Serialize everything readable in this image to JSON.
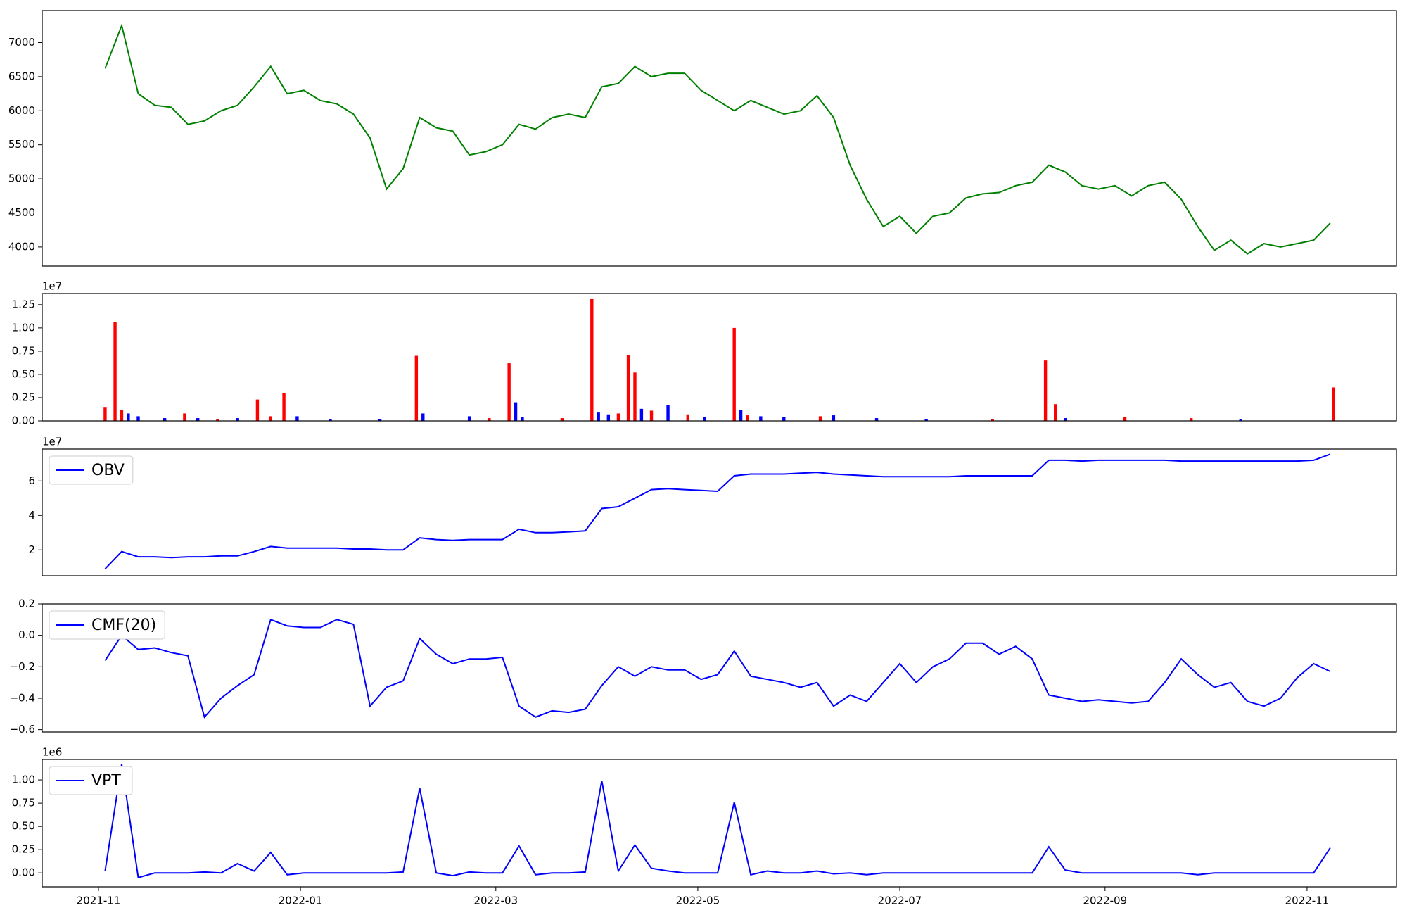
{
  "chart_data": [
    {
      "type": "line",
      "xlim": [
        -17,
        392
      ],
      "ylim": [
        3720,
        7470
      ],
      "yticks": [
        4000,
        4500,
        5000,
        5500,
        6000,
        6500,
        7000
      ],
      "x": [
        2,
        7,
        12,
        17,
        22,
        27,
        32,
        37,
        42,
        47,
        52,
        57,
        62,
        67,
        72,
        77,
        82,
        87,
        92,
        97,
        102,
        107,
        112,
        117,
        122,
        127,
        132,
        137,
        142,
        147,
        152,
        157,
        162,
        167,
        172,
        177,
        182,
        187,
        192,
        197,
        202,
        207,
        212,
        217,
        222,
        227,
        232,
        237,
        242,
        247,
        252,
        257,
        262,
        267,
        272,
        277,
        282,
        287,
        292,
        297,
        302,
        307,
        312,
        317,
        322,
        327,
        332,
        337,
        342,
        347,
        352,
        357,
        362,
        367,
        372
      ],
      "series": [
        {
          "color": "#008000",
          "values": [
            6620,
            7250,
            6250,
            6080,
            6050,
            5800,
            5850,
            6000,
            6080,
            6350,
            6650,
            6250,
            6300,
            6150,
            6100,
            5950,
            5600,
            4850,
            5150,
            5900,
            5750,
            5700,
            5350,
            5400,
            5500,
            5800,
            5730,
            5900,
            5950,
            5900,
            6350,
            6400,
            6650,
            6500,
            6550,
            6550,
            6300,
            6150,
            6000,
            6150,
            6050,
            5950,
            6000,
            6220,
            5900,
            5200,
            4700,
            4300,
            4450,
            4200,
            4450,
            4500,
            4720,
            4780,
            4800,
            4900,
            4950,
            5200,
            5100,
            4900,
            4850,
            4900,
            4750,
            4900,
            4950,
            4700,
            4300,
            3950,
            4100,
            3900,
            4050,
            4000,
            4050,
            4100,
            4350
          ]
        }
      ]
    },
    {
      "type": "bar",
      "xlim": [
        -17,
        392
      ],
      "ylim": [
        0,
        1.37
      ],
      "offset_label": "1e7",
      "yticks": [
        {
          "value": 0,
          "label": "0.00"
        },
        0.25,
        {
          "value": 0.5,
          "label": "0.50"
        },
        0.75,
        {
          "value": 1,
          "label": "1.00"
        },
        1.25
      ],
      "x": [
        2,
        5,
        7,
        9,
        12,
        20,
        26,
        30,
        36,
        42,
        48,
        52,
        56,
        60,
        70,
        85,
        96,
        98,
        112,
        118,
        124,
        126,
        128,
        140,
        149,
        151,
        154,
        157,
        160,
        162,
        164,
        167,
        172,
        178,
        183,
        192,
        194,
        196,
        200,
        207,
        218,
        222,
        235,
        250,
        270,
        286,
        289,
        292,
        310,
        330,
        345,
        373
      ],
      "values": [
        0.15,
        1.06,
        0.12,
        0.08,
        0.05,
        0.03,
        0.08,
        0.03,
        0.02,
        0.03,
        0.23,
        0.05,
        0.3,
        0.05,
        0.02,
        0.02,
        0.7,
        0.08,
        0.05,
        0.03,
        0.62,
        0.2,
        0.04,
        0.03,
        1.31,
        0.09,
        0.07,
        0.08,
        0.71,
        0.52,
        0.13,
        0.11,
        0.17,
        0.07,
        0.04,
        1.0,
        0.12,
        0.06,
        0.05,
        0.04,
        0.05,
        0.06,
        0.03,
        0.02,
        0.02,
        0.65,
        0.18,
        0.03,
        0.04,
        0.03,
        0.02,
        0.36
      ],
      "colors": [
        "#ff0000",
        "#ff0000",
        "#ff0000",
        "#0000ff",
        "#0000ff",
        "#0000ff",
        "#ff0000",
        "#0000ff",
        "#ff0000",
        "#0000ff",
        "#ff0000",
        "#ff0000",
        "#ff0000",
        "#0000ff",
        "#0000ff",
        "#0000ff",
        "#ff0000",
        "#0000ff",
        "#0000ff",
        "#ff0000",
        "#ff0000",
        "#0000ff",
        "#0000ff",
        "#ff0000",
        "#ff0000",
        "#0000ff",
        "#0000ff",
        "#ff0000",
        "#ff0000",
        "#ff0000",
        "#0000ff",
        "#ff0000",
        "#0000ff",
        "#ff0000",
        "#0000ff",
        "#ff0000",
        "#0000ff",
        "#ff0000",
        "#0000ff",
        "#0000ff",
        "#ff0000",
        "#0000ff",
        "#0000ff",
        "#0000ff",
        "#ff0000",
        "#ff0000",
        "#ff0000",
        "#0000ff",
        "#ff0000",
        "#ff0000",
        "#0000ff",
        "#ff0000"
      ]
    },
    {
      "type": "line",
      "xlim": [
        -17,
        392
      ],
      "ylim": [
        0.5,
        7.85
      ],
      "offset_label": "1e7",
      "yticks": [
        2,
        4,
        6
      ],
      "legend": "upper left",
      "x": [
        2,
        7,
        12,
        17,
        22,
        27,
        32,
        37,
        42,
        47,
        52,
        57,
        62,
        67,
        72,
        77,
        82,
        87,
        92,
        97,
        102,
        107,
        112,
        117,
        122,
        127,
        132,
        137,
        142,
        147,
        152,
        157,
        162,
        167,
        172,
        177,
        182,
        187,
        192,
        197,
        202,
        207,
        212,
        217,
        222,
        227,
        232,
        237,
        242,
        247,
        252,
        257,
        262,
        267,
        272,
        277,
        282,
        287,
        292,
        297,
        302,
        307,
        312,
        317,
        322,
        327,
        332,
        337,
        342,
        347,
        352,
        357,
        362,
        367,
        372
      ],
      "series": [
        {
          "name": "OBV",
          "color": "#0000ff",
          "values": [
            0.9,
            1.9,
            1.6,
            1.6,
            1.55,
            1.6,
            1.6,
            1.65,
            1.65,
            1.9,
            2.2,
            2.1,
            2.1,
            2.1,
            2.1,
            2.05,
            2.05,
            2.0,
            2.0,
            2.7,
            2.6,
            2.55,
            2.6,
            2.6,
            2.6,
            3.2,
            3.0,
            3.0,
            3.05,
            3.1,
            4.4,
            4.5,
            5.0,
            5.5,
            5.55,
            5.5,
            5.45,
            5.4,
            6.3,
            6.4,
            6.4,
            6.4,
            6.45,
            6.5,
            6.4,
            6.35,
            6.3,
            6.25,
            6.25,
            6.25,
            6.25,
            6.25,
            6.3,
            6.3,
            6.3,
            6.3,
            6.3,
            7.2,
            7.2,
            7.15,
            7.2,
            7.2,
            7.2,
            7.2,
            7.2,
            7.15,
            7.15,
            7.15,
            7.15,
            7.15,
            7.15,
            7.15,
            7.15,
            7.2,
            7.55
          ]
        }
      ]
    },
    {
      "type": "line",
      "xlim": [
        -17,
        392
      ],
      "ylim": [
        -0.615,
        0.2
      ],
      "legend": "upper left",
      "yticks": [
        {
          "value": -0.6,
          "label": "−0.6"
        },
        {
          "value": -0.4,
          "label": "−0.4"
        },
        {
          "value": -0.2,
          "label": "−0.2"
        },
        {
          "value": 0,
          "label": "0.0"
        },
        0.2
      ],
      "x": [
        2,
        7,
        12,
        17,
        22,
        27,
        32,
        37,
        42,
        47,
        52,
        57,
        62,
        67,
        72,
        77,
        82,
        87,
        92,
        97,
        102,
        107,
        112,
        117,
        122,
        127,
        132,
        137,
        142,
        147,
        152,
        157,
        162,
        167,
        172,
        177,
        182,
        187,
        192,
        197,
        202,
        207,
        212,
        217,
        222,
        227,
        232,
        237,
        242,
        247,
        252,
        257,
        262,
        267,
        272,
        277,
        282,
        287,
        292,
        297,
        302,
        307,
        312,
        317,
        322,
        327,
        332,
        337,
        342,
        347,
        352,
        357,
        362,
        367,
        372
      ],
      "series": [
        {
          "name": "CMF(20)",
          "color": "#0000ff",
          "values": [
            -0.16,
            0.0,
            -0.09,
            -0.08,
            -0.11,
            -0.13,
            -0.52,
            -0.4,
            -0.32,
            -0.25,
            0.1,
            0.06,
            0.05,
            0.05,
            0.1,
            0.07,
            -0.45,
            -0.33,
            -0.29,
            -0.02,
            -0.12,
            -0.18,
            -0.15,
            -0.15,
            -0.14,
            -0.45,
            -0.52,
            -0.48,
            -0.49,
            -0.47,
            -0.32,
            -0.2,
            -0.26,
            -0.2,
            -0.22,
            -0.22,
            -0.28,
            -0.25,
            -0.1,
            -0.26,
            -0.28,
            -0.3,
            -0.33,
            -0.3,
            -0.45,
            -0.38,
            -0.42,
            -0.3,
            -0.18,
            -0.3,
            -0.2,
            -0.15,
            -0.05,
            -0.05,
            -0.12,
            -0.07,
            -0.15,
            -0.38,
            -0.4,
            -0.42,
            -0.41,
            -0.42,
            -0.43,
            -0.42,
            -0.3,
            -0.15,
            -0.25,
            -0.33,
            -0.3,
            -0.42,
            -0.45,
            -0.4,
            -0.27,
            -0.18,
            -0.23
          ]
        }
      ]
    },
    {
      "type": "line",
      "xlim": [
        -17,
        392
      ],
      "ylim": [
        -0.15,
        1.22
      ],
      "offset_label": "1e6",
      "legend": "upper left",
      "yticks": [
        {
          "value": 0,
          "label": "0.00"
        },
        0.25,
        {
          "value": 0.5,
          "label": "0.50"
        },
        0.75,
        {
          "value": 1,
          "label": "1.00"
        }
      ],
      "xticks": [
        {
          "value": 0,
          "label": "2021-11"
        },
        {
          "value": 61,
          "label": "2022-01"
        },
        {
          "value": 120,
          "label": "2022-03"
        },
        {
          "value": 181,
          "label": "2022-05"
        },
        {
          "value": 242,
          "label": "2022-07"
        },
        {
          "value": 304,
          "label": "2022-09"
        },
        {
          "value": 365,
          "label": "2022-11"
        }
      ],
      "x": [
        2,
        7,
        12,
        17,
        22,
        27,
        32,
        37,
        42,
        47,
        52,
        57,
        62,
        67,
        72,
        77,
        82,
        87,
        92,
        97,
        102,
        107,
        112,
        117,
        122,
        127,
        132,
        137,
        142,
        147,
        152,
        157,
        162,
        167,
        172,
        177,
        182,
        187,
        192,
        197,
        202,
        207,
        212,
        217,
        222,
        227,
        232,
        237,
        242,
        247,
        252,
        257,
        262,
        267,
        272,
        277,
        282,
        287,
        292,
        297,
        302,
        307,
        312,
        317,
        322,
        327,
        332,
        337,
        342,
        347,
        352,
        357,
        362,
        367,
        372
      ],
      "series": [
        {
          "name": "VPT",
          "color": "#0000ff",
          "values": [
            0.02,
            1.17,
            -0.05,
            0.0,
            0.0,
            0.0,
            0.01,
            0.0,
            0.1,
            0.02,
            0.22,
            -0.02,
            0.0,
            0.0,
            0.0,
            0.0,
            0.0,
            0.0,
            0.01,
            0.91,
            0.0,
            -0.03,
            0.01,
            0.0,
            0.0,
            0.29,
            -0.02,
            0.0,
            0.0,
            0.01,
            0.99,
            0.02,
            0.3,
            0.05,
            0.02,
            0.0,
            0.0,
            0.0,
            0.76,
            -0.02,
            0.02,
            0.0,
            0.0,
            0.02,
            -0.01,
            0.0,
            -0.02,
            0.0,
            0.0,
            0.0,
            0.0,
            0.0,
            0.0,
            0.0,
            0.0,
            0.0,
            0.0,
            0.28,
            0.03,
            0.0,
            0.0,
            0.0,
            0.0,
            0.0,
            0.0,
            0.0,
            -0.02,
            0.0,
            0.0,
            0.0,
            0.0,
            0.0,
            0.0,
            0.0,
            0.27
          ]
        }
      ]
    }
  ]
}
